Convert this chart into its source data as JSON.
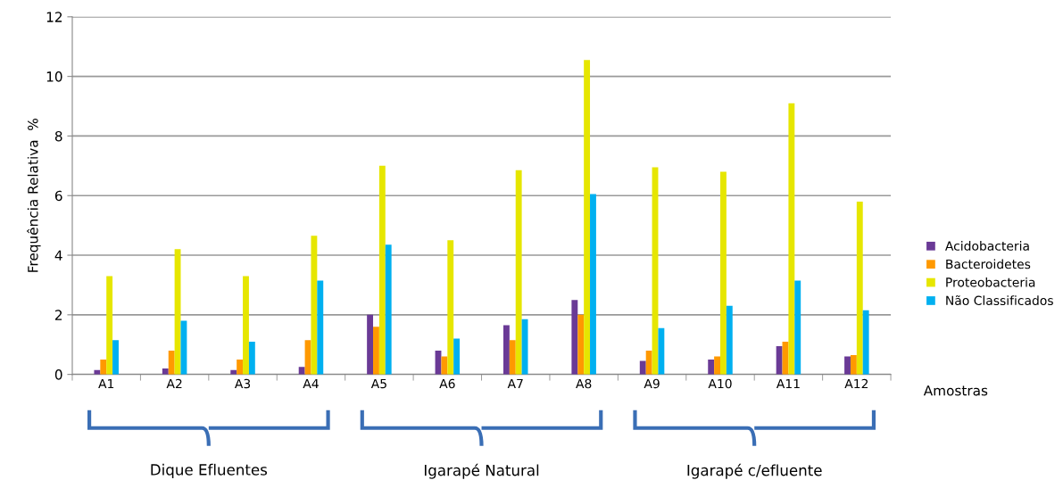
{
  "chart_data": {
    "type": "bar",
    "categories": [
      "A1",
      "A2",
      "A3",
      "A4",
      "A5",
      "A6",
      "A7",
      "A8",
      "A9",
      "A10",
      "A11",
      "A12"
    ],
    "series": [
      {
        "name": "Acidobacteria",
        "color": "#6a3a96",
        "values": [
          0.15,
          0.2,
          0.15,
          0.25,
          2.0,
          0.8,
          1.65,
          2.5,
          0.45,
          0.5,
          0.95,
          0.6
        ]
      },
      {
        "name": "Bacteroidetes",
        "color": "#ff9900",
        "values": [
          0.5,
          0.8,
          0.5,
          1.15,
          1.6,
          0.6,
          1.15,
          2.0,
          0.8,
          0.6,
          1.1,
          0.65
        ]
      },
      {
        "name": "Proteobacteria",
        "color": "#e6e600",
        "values": [
          3.3,
          4.2,
          3.3,
          4.65,
          7.0,
          4.5,
          6.85,
          10.55,
          6.95,
          6.8,
          9.1,
          5.8
        ]
      },
      {
        "name": "Não Classificados",
        "color": "#00b0f0",
        "values": [
          1.15,
          1.8,
          1.1,
          3.15,
          4.35,
          1.2,
          1.85,
          6.05,
          1.55,
          2.3,
          3.15,
          2.15
        ]
      }
    ],
    "xlabel": "Amostras",
    "ylabel": "Frequência Relativa  %",
    "ylim": [
      0,
      12
    ],
    "yticks": [
      0,
      2,
      4,
      6,
      8,
      10,
      12
    ],
    "grid": "y",
    "legend": "right",
    "annotations": [
      "Dique Efluentes",
      "Igarapé Natural",
      "Igarapé c/efluente"
    ]
  }
}
